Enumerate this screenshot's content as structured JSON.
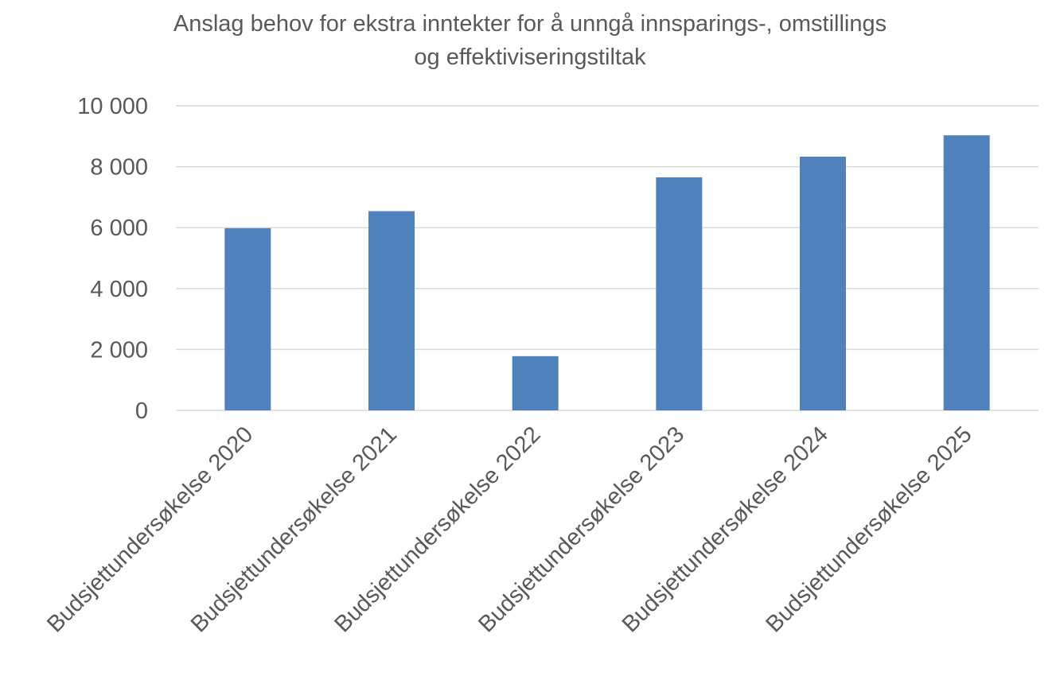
{
  "chart_data": {
    "type": "bar",
    "title_lines": [
      "Anslag behov for ekstra inntekter for å unngå innsparings-, omstillings",
      "og effektiviseringstiltak"
    ],
    "xlabel": "",
    "ylabel": "",
    "categories": [
      "Budsjettundersøkelse 2020",
      "Budsjettundersøkelse 2021",
      "Budsjettundersøkelse 2022",
      "Budsjettundersøkelse 2023",
      "Budsjettundersøkelse 2024",
      "Budsjettundersøkelse 2025"
    ],
    "series": [
      {
        "values": [
          5980,
          6540,
          1780,
          7650,
          8330,
          9030
        ]
      }
    ],
    "ylim": [
      0,
      10000
    ],
    "yticks": [
      0,
      2000,
      4000,
      6000,
      8000,
      10000
    ],
    "ytick_labels": [
      "0",
      "2 000",
      "4 000",
      "6 000",
      "8 000",
      "10 000"
    ],
    "grid": true,
    "legend": "none",
    "colors": {
      "bar": "#4F81BD",
      "grid": "#D9D9D9",
      "text": "#595959"
    }
  }
}
